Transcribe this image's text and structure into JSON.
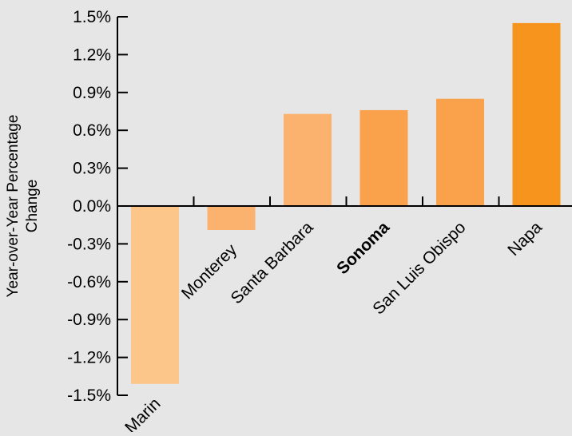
{
  "chart_data": {
    "type": "bar",
    "ylabel": "Year-over-Year Percentage Change",
    "ylabel_lines": [
      "Year-over-Year Percentage",
      "Change"
    ],
    "ylim": [
      -1.5,
      1.5
    ],
    "yticks": [
      1.5,
      1.2,
      0.9,
      0.6,
      0.3,
      0.0,
      -0.3,
      -0.6,
      -0.9,
      -1.2,
      -1.5
    ],
    "ytick_labels": [
      "1.5%",
      "1.2%",
      "0.9%",
      "0.6%",
      "0.3%",
      "0.0%",
      "-0.3%",
      "-0.6%",
      "-0.9%",
      "-1.2%",
      "-1.5%"
    ],
    "categories": [
      "Marin",
      "Monterey",
      "Santa Barbara",
      "Sonoma",
      "San Luis Obispo",
      "Napa"
    ],
    "values": [
      -1.41,
      -0.19,
      0.73,
      0.76,
      0.85,
      1.45
    ],
    "bar_colors": [
      "#fcc68a",
      "#fbb26e",
      "#fbb26e",
      "#f9a14b",
      "#f9a14b",
      "#f7941d"
    ],
    "highlight_category": "Sonoma",
    "grid": false,
    "legend": "none"
  }
}
